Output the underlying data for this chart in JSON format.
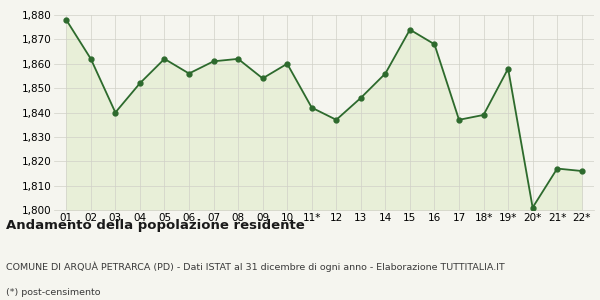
{
  "x_labels": [
    "01",
    "02",
    "03",
    "04",
    "05",
    "06",
    "07",
    "08",
    "09",
    "10",
    "11*",
    "12",
    "13",
    "14",
    "15",
    "16",
    "17",
    "18*",
    "19*",
    "20*",
    "21*",
    "22*"
  ],
  "y_values": [
    1878,
    1862,
    1840,
    1852,
    1862,
    1856,
    1861,
    1862,
    1854,
    1860,
    1842,
    1837,
    1846,
    1856,
    1874,
    1868,
    1837,
    1839,
    1858,
    1801,
    1817,
    1816
  ],
  "line_color": "#2d6a2d",
  "fill_color": "#e8efd8",
  "marker": "o",
  "marker_size": 3.5,
  "line_width": 1.3,
  "ylim": [
    1800,
    1880
  ],
  "yticks": [
    1800,
    1810,
    1820,
    1830,
    1840,
    1850,
    1860,
    1870,
    1880
  ],
  "bg_color": "#f5f5ef",
  "plot_bg_color": "#f5f5ef",
  "title": "Andamento della popolazione residente",
  "subtitle": "COMUNE DI ARQUÀ PETRARCA (PD) - Dati ISTAT al 31 dicembre di ogni anno - Elaborazione TUTTITALIA.IT",
  "footnote": "(*) post-censimento",
  "title_fontsize": 9.5,
  "subtitle_fontsize": 6.8,
  "footnote_fontsize": 6.8,
  "grid_color": "#d0d0c8",
  "tick_fontsize": 7.5
}
